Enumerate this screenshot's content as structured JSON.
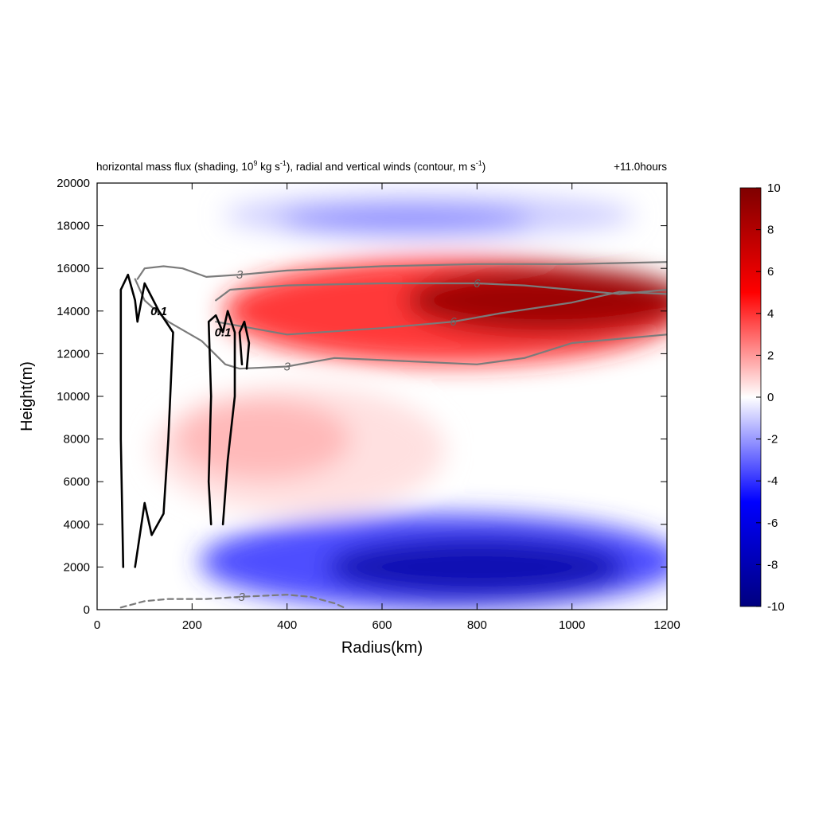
{
  "chart_data": {
    "type": "heatmap",
    "title": "horizontal mass flux (shading, 10",
    "title_parts": {
      "a": "horizontal mass flux (shading, 10",
      "a_sup": "9",
      "b": " kg s",
      "b_sup": "-1",
      "c": "), radial and vertical winds (contour, m s",
      "c_sup": "-1",
      "d": ")"
    },
    "time_label": "+11.0hours",
    "xlabel": "Radius(km)",
    "ylabel": "Height(m)",
    "xlim": [
      0,
      1200
    ],
    "ylim": [
      0,
      20000
    ],
    "x_ticks": [
      "0",
      "200",
      "400",
      "600",
      "800",
      "1000",
      "1200"
    ],
    "y_ticks": [
      "0",
      "2000",
      "4000",
      "6000",
      "8000",
      "10000",
      "12000",
      "14000",
      "16000",
      "18000",
      "20000"
    ],
    "colorbar": {
      "min": -10,
      "max": 10,
      "ticks": [
        "10",
        "8",
        "6",
        "4",
        "2",
        "0",
        "-2",
        "-4",
        "-6",
        "-8",
        "-10"
      ],
      "colors": [
        "#00007f",
        "#0000ff",
        "#ffffff",
        "#ff0000",
        "#7f0000"
      ]
    },
    "shading_features": [
      {
        "feature": "outflow maximum",
        "x_range": [
          300,
          1200
        ],
        "y_range": [
          11500,
          16500
        ],
        "peak_value": 9.5,
        "peak_at": [
          950,
          14500
        ]
      },
      {
        "feature": "inflow maximum",
        "x_range": [
          250,
          1200
        ],
        "y_range": [
          0,
          4500
        ],
        "peak_value": -8.5,
        "peak_at": [
          800,
          2000
        ]
      },
      {
        "feature": "upper negative band",
        "x_range": [
          300,
          1100
        ],
        "y_range": [
          17500,
          19500
        ],
        "peak_value": -2.5,
        "peak_at": [
          650,
          18300
        ]
      },
      {
        "feature": "mid-level positive tongue",
        "x_range": [
          150,
          700
        ],
        "y_range": [
          4500,
          10500
        ],
        "peak_value": 1.5,
        "peak_at": [
          350,
          8000
        ]
      }
    ],
    "contours": [
      {
        "variable": "radial wind",
        "level": "3",
        "style": "solid",
        "color": "#7b7b7b",
        "points": [
          [
            85,
            15500
          ],
          [
            100,
            16000
          ],
          [
            140,
            16100
          ],
          [
            180,
            16000
          ],
          [
            230,
            15600
          ],
          [
            300,
            15700
          ],
          [
            400,
            15900
          ],
          [
            600,
            16100
          ],
          [
            800,
            16200
          ],
          [
            1000,
            16200
          ],
          [
            1200,
            16300
          ]
        ]
      },
      {
        "variable": "radial wind",
        "level": "6",
        "style": "solid",
        "color": "#7b7b7b",
        "points": [
          [
            250,
            14500
          ],
          [
            280,
            15000
          ],
          [
            400,
            15200
          ],
          [
            600,
            15300
          ],
          [
            800,
            15300
          ],
          [
            900,
            15200
          ],
          [
            1000,
            15000
          ],
          [
            1100,
            14800
          ],
          [
            1200,
            15000
          ]
        ]
      },
      {
        "variable": "radial wind",
        "level": "6",
        "style": "solid",
        "color": "#7b7b7b",
        "points": [
          [
            250,
            13500
          ],
          [
            300,
            13300
          ],
          [
            400,
            12900
          ],
          [
            600,
            13200
          ],
          [
            750,
            13500
          ],
          [
            850,
            13900
          ],
          [
            1000,
            14400
          ],
          [
            1100,
            14900
          ],
          [
            1200,
            14800
          ]
        ]
      },
      {
        "variable": "radial wind",
        "level": "3",
        "style": "solid",
        "color": "#7b7b7b",
        "points": [
          [
            80,
            15500
          ],
          [
            100,
            14500
          ],
          [
            150,
            13500
          ],
          [
            220,
            12600
          ],
          [
            270,
            11500
          ],
          [
            300,
            11300
          ],
          [
            400,
            11400
          ],
          [
            500,
            11800
          ],
          [
            600,
            11700
          ],
          [
            800,
            11500
          ],
          [
            900,
            11800
          ],
          [
            1000,
            12500
          ],
          [
            1200,
            12900
          ]
        ]
      },
      {
        "variable": "radial wind",
        "level": "-3",
        "style": "dashed",
        "color": "#7b7b7b",
        "points": [
          [
            50,
            100
          ],
          [
            100,
            400
          ],
          [
            150,
            500
          ],
          [
            230,
            500
          ],
          [
            300,
            600
          ],
          [
            400,
            700
          ],
          [
            450,
            600
          ],
          [
            500,
            300
          ],
          [
            520,
            100
          ]
        ]
      },
      {
        "variable": "vertical wind",
        "level": "0.1",
        "style": "solid",
        "color": "#000000",
        "points": [
          [
            55,
            2000
          ],
          [
            50,
            8000
          ],
          [
            50,
            15000
          ],
          [
            65,
            15700
          ],
          [
            80,
            14500
          ],
          [
            85,
            13500
          ],
          [
            100,
            15300
          ],
          [
            130,
            14000
          ],
          [
            160,
            13000
          ],
          [
            150,
            8000
          ],
          [
            140,
            4500
          ],
          [
            115,
            3500
          ],
          [
            100,
            5000
          ],
          [
            80,
            2000
          ]
        ]
      },
      {
        "variable": "vertical wind",
        "level": "0.1",
        "style": "solid",
        "color": "#000000",
        "points": [
          [
            240,
            4000
          ],
          [
            235,
            6000
          ],
          [
            240,
            10000
          ],
          [
            235,
            13500
          ],
          [
            250,
            13800
          ],
          [
            265,
            13000
          ],
          [
            275,
            14000
          ],
          [
            290,
            13000
          ],
          [
            290,
            10000
          ],
          [
            275,
            7000
          ],
          [
            265,
            4000
          ]
        ]
      },
      {
        "variable": "vertical wind",
        "level": "",
        "style": "solid",
        "color": "#000000",
        "points": [
          [
            305,
            11500
          ],
          [
            300,
            13000
          ],
          [
            310,
            13500
          ],
          [
            320,
            12500
          ],
          [
            315,
            11300
          ]
        ]
      }
    ],
    "grid": false,
    "legend": "colorbar right"
  }
}
